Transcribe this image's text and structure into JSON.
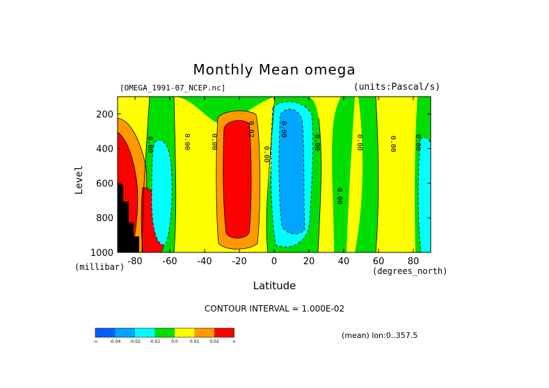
{
  "chart_data": {
    "type": "heatmap",
    "title": "Monthly Mean omega",
    "dataset_label": "[OMEGA_1991-07_NCEP.nc]",
    "units_label": "(units:Pascal/s)",
    "xlabel": "Latitude",
    "x_unit": "(degrees_north)",
    "ylabel": "Level",
    "y_unit": "(millibar)",
    "xlim": [
      -90,
      90
    ],
    "ylim": [
      1000,
      100
    ],
    "x_ticks": [
      -80,
      -60,
      -40,
      -20,
      0,
      20,
      40,
      60,
      80
    ],
    "y_ticks": [
      200,
      400,
      600,
      800,
      1000
    ],
    "x_tick_labels": [
      "-80",
      "-60",
      "-40",
      "-20",
      "0",
      "20",
      "40",
      "60",
      "80"
    ],
    "y_tick_labels": [
      "200",
      "400",
      "600",
      "800",
      "1000"
    ],
    "contour_interval_text": "CONTOUR INTERVAL = 1.000E-02",
    "contour_labels": [
      "0.00",
      "0.00",
      "0.00",
      "0.02",
      "0.00",
      "0.00",
      "0.00",
      "0.00",
      "0.00",
      "0.00"
    ],
    "mean_note": "(mean) lon:0..357.5",
    "colorbar": {
      "colors": [
        "#0060ff",
        "#00a6ff",
        "#00ffff",
        "#00dd00",
        "#ffff00",
        "#ff9900",
        "#ff0000"
      ],
      "labels": [
        "-∞",
        "-0.04",
        "-0.02",
        "-0.01",
        "0.0",
        "0.01",
        "0.02",
        "∞"
      ]
    },
    "bands": [
      {
        "lat": [
          -90,
          -83
        ],
        "level": [
          300,
          1000
        ],
        "value": 0.03
      },
      {
        "lat": [
          -80,
          -68
        ],
        "level": [
          600,
          1000
        ],
        "value": 0.02
      },
      {
        "lat": [
          -70,
          -60
        ],
        "level": [
          300,
          1000
        ],
        "value": -0.02
      },
      {
        "lat": [
          -30,
          -12
        ],
        "level": [
          130,
          960
        ],
        "value": 0.02
      },
      {
        "lat": [
          0,
          18
        ],
        "level": [
          110,
          960
        ],
        "value": -0.02
      },
      {
        "lat": [
          18,
          34
        ],
        "level": [
          100,
          1000
        ],
        "value": 0.0
      },
      {
        "lat": [
          50,
          58
        ],
        "level": [
          100,
          1000
        ],
        "value": 0.0
      },
      {
        "lat": [
          84,
          90
        ],
        "level": [
          300,
          1000
        ],
        "value": -0.02
      }
    ]
  }
}
